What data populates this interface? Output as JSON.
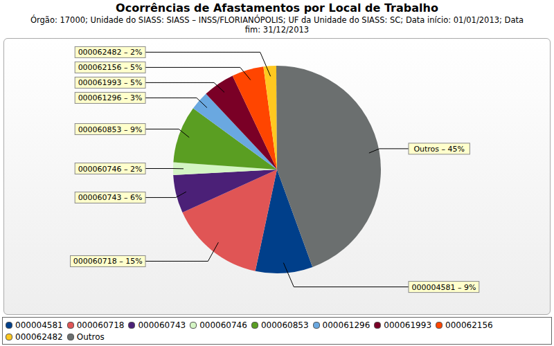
{
  "chart_data": {
    "type": "pie",
    "title": "Ocorrências de Afastamentos por Local de Trabalho",
    "subtitle": "Órgão: 17000; Unidade do SIASS: SIASS – INSS/FLORIANÓPOLIS; UF da Unidade do SIASS: SC; Data início: 01/01/2013; Data fim: 31/12/2013",
    "categories": [
      "000004581",
      "000060718",
      "000060743",
      "000060746",
      "000060853",
      "000061296",
      "000061993",
      "000062156",
      "000062482",
      "Outros"
    ],
    "values": [
      9,
      15,
      6,
      2,
      9,
      3,
      5,
      5,
      2,
      45
    ],
    "value_labels": [
      "000004581 – 9%",
      "000060718 – 15%",
      "000060743 – 6%",
      "000060746 – 2%",
      "000060853 – 9%",
      "000061296 – 3%",
      "000061993 – 5%",
      "000062156 – 5%",
      "000062482 – 2%",
      "Outros – 45%"
    ],
    "colors": [
      "#003f8a",
      "#e05555",
      "#4b2077",
      "#d4f5c4",
      "#5a9e22",
      "#6aa8e0",
      "#7a0026",
      "#ff4500",
      "#ffc820",
      "#6b6f6f"
    ],
    "data_labels": true,
    "legend": "bottom"
  }
}
